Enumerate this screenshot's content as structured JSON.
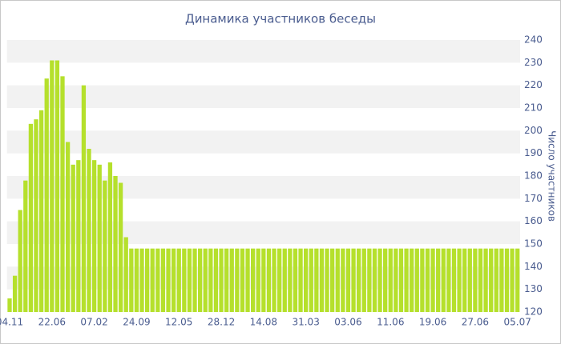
{
  "chart_data": {
    "type": "bar",
    "title": "Динамика участников беседы",
    "y_axis_label": "Число участников",
    "categories": [
      "04.11",
      null,
      null,
      null,
      null,
      null,
      null,
      null,
      "22.06",
      null,
      null,
      null,
      null,
      null,
      null,
      null,
      "07.02",
      null,
      null,
      null,
      null,
      null,
      null,
      null,
      "24.09",
      null,
      null,
      null,
      null,
      null,
      null,
      null,
      "12.05",
      null,
      null,
      null,
      null,
      null,
      null,
      null,
      "28.12",
      null,
      null,
      null,
      null,
      null,
      null,
      null,
      "14.08",
      null,
      null,
      null,
      null,
      null,
      null,
      null,
      "31.03",
      null,
      null,
      null,
      null,
      null,
      null,
      null,
      "03.06",
      null,
      null,
      null,
      null,
      null,
      null,
      null,
      "11.06",
      null,
      null,
      null,
      null,
      null,
      null,
      null,
      "19.06",
      null,
      null,
      null,
      null,
      null,
      null,
      null,
      "27.06",
      null,
      null,
      null,
      null,
      null,
      null,
      null,
      "05.07"
    ],
    "values": [
      126,
      136,
      165,
      178,
      203,
      205,
      209,
      223,
      231,
      231,
      224,
      195,
      185,
      187,
      220,
      192,
      187,
      185,
      178,
      186,
      180,
      177,
      153,
      148,
      148,
      148,
      148,
      148,
      148,
      148,
      148,
      148,
      148,
      148,
      148,
      148,
      148,
      148,
      148,
      148,
      148,
      148,
      148,
      148,
      148,
      148,
      148,
      148,
      148,
      148,
      148,
      148,
      148,
      148,
      148,
      148,
      148,
      148,
      148,
      148,
      148,
      148,
      148,
      148,
      148,
      148,
      148,
      148,
      148,
      148,
      148,
      148,
      148,
      148,
      148,
      148,
      148,
      148,
      148,
      148,
      148,
      148,
      148,
      148,
      148,
      148,
      148,
      148,
      148,
      148,
      148,
      148,
      148,
      148,
      148,
      148,
      148
    ],
    "color": "#b5e02c",
    "ylim": [
      120,
      240
    ],
    "yticks": [
      120,
      130,
      140,
      150,
      160,
      170,
      180,
      190,
      200,
      210,
      220,
      230,
      240
    ],
    "grid": true
  }
}
